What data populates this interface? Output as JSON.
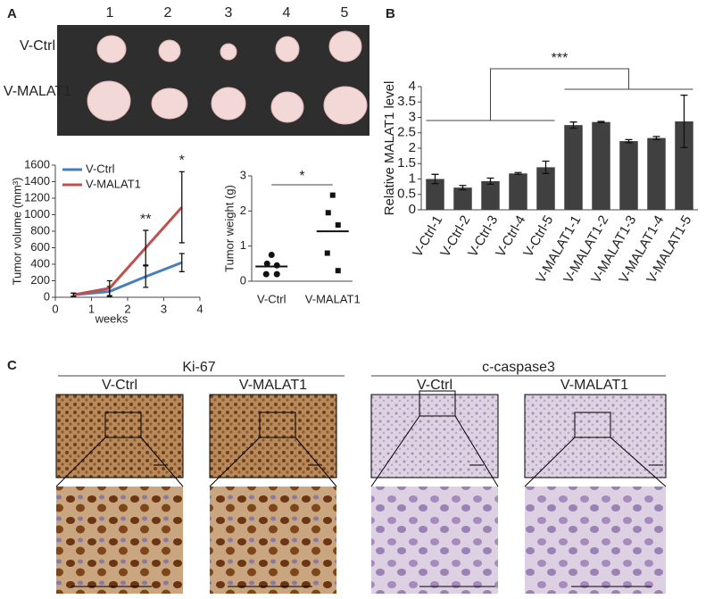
{
  "panel_labels": [
    "A",
    "B",
    "C"
  ],
  "photo": {
    "columns": [
      "1",
      "2",
      "3",
      "4",
      "5"
    ],
    "rows": [
      "V-Ctrl",
      "V-MALAT1"
    ]
  },
  "ihc": {
    "groups": [
      {
        "title": "Ki-67",
        "conditions": [
          "V-Ctrl",
          "V-MALAT1"
        ]
      },
      {
        "title": "c-caspase3",
        "conditions": [
          "V-Ctrl",
          "V-MALAT1"
        ]
      }
    ]
  },
  "chart_data": [
    {
      "type": "line",
      "xlabel": "weeks",
      "ylabel": "Tumor volume (mm³)",
      "x": [
        0.5,
        1.5,
        2.5,
        3.5
      ],
      "xlim": [
        0,
        4
      ],
      "xticks": [
        0,
        1,
        2,
        3,
        4
      ],
      "ylim": [
        0,
        1600
      ],
      "yticks": [
        0,
        200,
        400,
        600,
        800,
        1000,
        1200,
        1400,
        1600
      ],
      "legend": "upper left",
      "annotations": [
        "**",
        "*"
      ],
      "series": [
        {
          "name": "V-Ctrl",
          "color": "#4a7ebb",
          "values": [
            30,
            70,
            250,
            420
          ],
          "errors": [
            20,
            60,
            130,
            110
          ]
        },
        {
          "name": "V-MALAT1",
          "color": "#c0504d",
          "values": [
            30,
            110,
            600,
            1090
          ],
          "errors": [
            20,
            90,
            210,
            430
          ]
        }
      ]
    },
    {
      "type": "scatter",
      "ylabel": "Tumor weight (g)",
      "categories": [
        "V-Ctrl",
        "V-MALAT1"
      ],
      "ylim": [
        0,
        3
      ],
      "yticks": [
        0,
        1,
        2,
        3
      ],
      "significance": "*",
      "series": [
        {
          "name": "V-Ctrl",
          "color": "#111111",
          "marker": "circle",
          "values": [
            0.75,
            0.5,
            0.45,
            0.2,
            0.2
          ]
        },
        {
          "name": "V-MALAT1",
          "color": "#111111",
          "marker": "square",
          "values": [
            2.45,
            1.95,
            1.6,
            0.8,
            0.3
          ]
        }
      ],
      "means": [
        0.42,
        1.42
      ]
    },
    {
      "type": "bar",
      "ylabel": "Relative MALAT1 level",
      "color": "#404040",
      "categories": [
        "V-Ctrl-1",
        "V-Ctrl-2",
        "V-Ctrl-3",
        "V-Ctrl-4",
        "V-Ctrl-5",
        "V-MALAT1-1",
        "V-MALAT1-2",
        "V-MALAT1-3",
        "V-MALAT1-4",
        "V-MALAT1-5"
      ],
      "values": [
        1.0,
        0.72,
        0.93,
        1.18,
        1.38,
        2.75,
        2.85,
        2.23,
        2.33,
        2.87
      ],
      "errors": [
        0.15,
        0.07,
        0.1,
        0.03,
        0.2,
        0.1,
        0.02,
        0.05,
        0.05,
        0.85
      ],
      "ylim": [
        0,
        4
      ],
      "yticks": [
        0,
        0.5,
        1,
        1.5,
        2,
        2.5,
        3,
        3.5,
        4
      ],
      "significance": "***"
    }
  ]
}
